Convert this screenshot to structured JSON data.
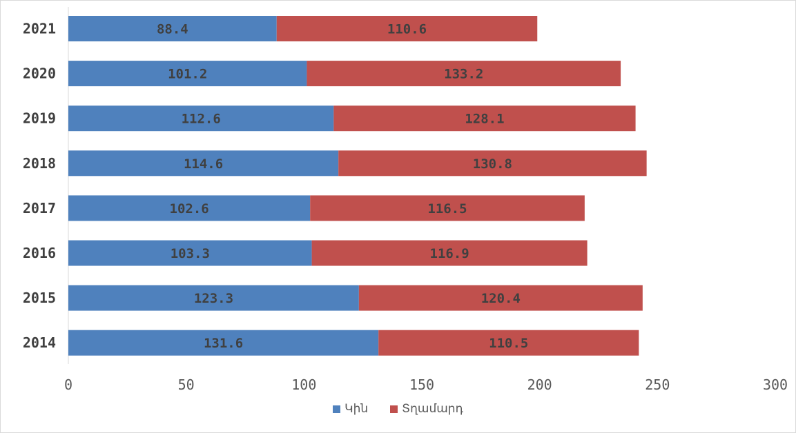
{
  "chart_data": {
    "type": "bar",
    "orientation": "horizontal",
    "stacked": true,
    "categories": [
      "2021",
      "2020",
      "2019",
      "2018",
      "2017",
      "2016",
      "2015",
      "2014"
    ],
    "series": [
      {
        "name": "Կին",
        "color": "#4f81bd",
        "values": [
          88.4,
          101.2,
          112.6,
          114.6,
          102.6,
          103.3,
          123.3,
          131.6
        ]
      },
      {
        "name": "Տղամարդ",
        "color": "#c0504d",
        "values": [
          110.6,
          133.2,
          128.1,
          130.8,
          116.5,
          116.9,
          120.4,
          110.5
        ]
      }
    ],
    "xlim": [
      0,
      300
    ],
    "xticks": [
      0,
      50,
      100,
      150,
      200,
      250,
      300
    ],
    "xlabel": "",
    "ylabel": "",
    "title": "",
    "grid": false,
    "legend_position": "bottom",
    "data_labels": [
      "88.4",
      "110.6",
      "101.2",
      "133.2",
      "112.6",
      "128.1",
      "114.6",
      "130.8",
      "102.6",
      "116.5",
      "103.3",
      "116.9",
      "123.3",
      "120.4",
      "131.6",
      "110.5"
    ],
    "tick_labels": [
      "0",
      "50",
      "100",
      "150",
      "200",
      "250",
      "300"
    ]
  }
}
